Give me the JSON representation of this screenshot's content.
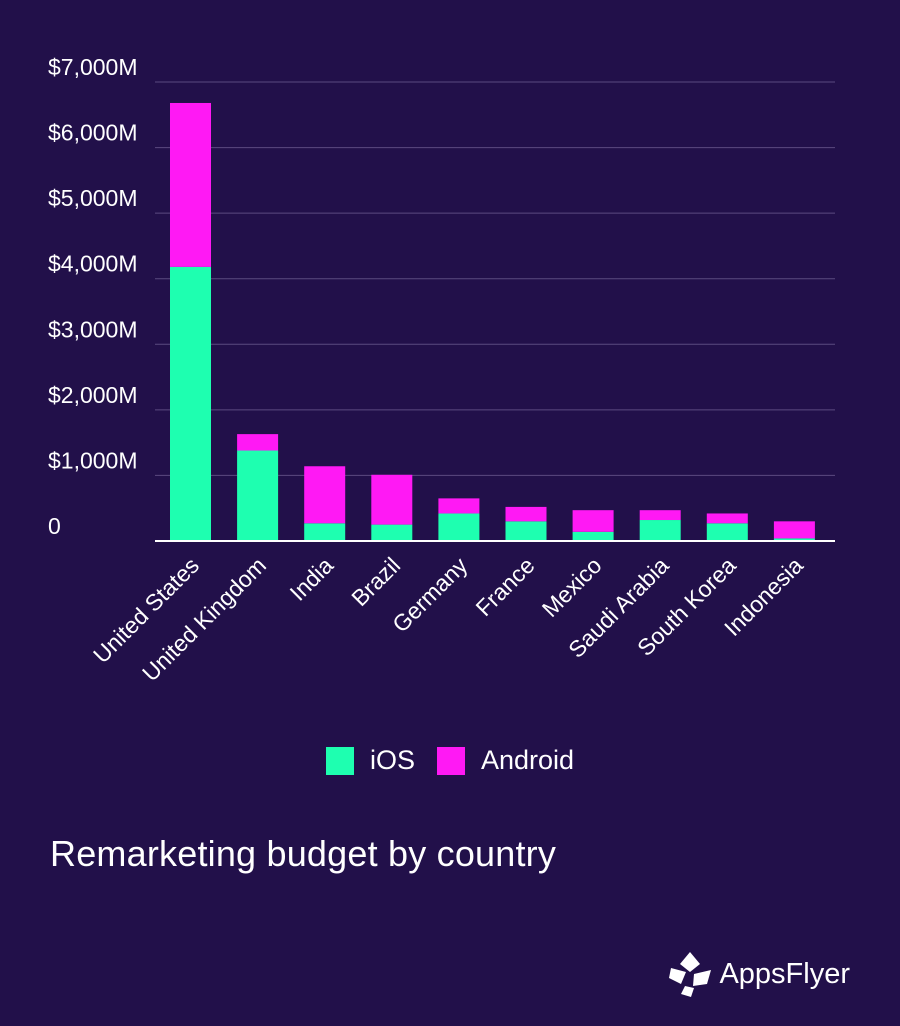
{
  "chart_data": {
    "type": "bar",
    "stacked": true,
    "title": "Remarketing budget by country",
    "xlabel": "",
    "ylabel": "",
    "ylim": [
      0,
      7000
    ],
    "yticks": [
      0,
      1000,
      2000,
      3000,
      4000,
      5000,
      6000,
      7000
    ],
    "ytick_labels": [
      "0",
      "$1,000M",
      "$2,000M",
      "$3,000M",
      "$4,000M",
      "$5,000M",
      "$6,000M",
      "$7,000M"
    ],
    "categories": [
      "United States",
      "United Kingdom",
      "India",
      "Brazil",
      "Germany",
      "France",
      "Mexico",
      "Saudi Arabia",
      "South Korea",
      "Indonesia"
    ],
    "series": [
      {
        "name": "iOS",
        "color": "#1effb0",
        "values": [
          4180,
          1380,
          270,
          250,
          420,
          300,
          140,
          320,
          270,
          40
        ]
      },
      {
        "name": "Android",
        "color": "#ff19f4",
        "values": [
          2500,
          250,
          870,
          760,
          230,
          220,
          330,
          150,
          150,
          260
        ]
      }
    ],
    "grid": true,
    "legend_position": "bottom-center"
  },
  "legend": {
    "ios_label": "iOS",
    "android_label": "Android"
  },
  "brand": {
    "name": "AppsFlyer"
  },
  "colors": {
    "background": "#22104a",
    "grid": "#5b4a80",
    "ios": "#1effb0",
    "android": "#ff19f4"
  }
}
